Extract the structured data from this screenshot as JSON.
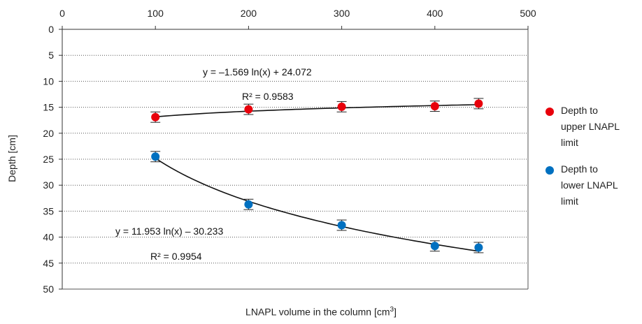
{
  "chart_data": {
    "type": "scatter",
    "xlim": [
      0,
      500
    ],
    "ylim": [
      0,
      50
    ],
    "x_ticks": [
      "0",
      "100",
      "200",
      "300",
      "400",
      "500"
    ],
    "y_ticks": [
      "0",
      "5",
      "10",
      "15",
      "20",
      "25",
      "30",
      "35",
      "40",
      "45",
      "50"
    ],
    "x_axis_position": "top",
    "y_inverted": true,
    "grid": "horizontal dotted",
    "xlabel_main": "LNAPL volume in the column [cm",
    "xlabel_sup": "3",
    "xlabel_end": "]",
    "ylabel": "Depth [cm]",
    "legend_position": "right",
    "series": [
      {
        "name": "Depth to upper LNAPL limit",
        "color": "#e8000b",
        "x": [
          100,
          200,
          300,
          400,
          447
        ],
        "y": [
          16.9,
          15.4,
          14.9,
          14.8,
          14.3
        ],
        "error": [
          1.0,
          1.0,
          1.0,
          1.0,
          1.0
        ],
        "trend": {
          "a": -1.569,
          "b": 24.072
        },
        "equation": "y = –1.569 ln(x) + 24.072",
        "r2": "R² = 0.9583"
      },
      {
        "name": "Depth to lower LNAPL limit",
        "color": "#0070c0",
        "x": [
          100,
          200,
          300,
          400,
          447
        ],
        "y": [
          24.5,
          33.7,
          37.7,
          41.7,
          42.0
        ],
        "error": [
          1.0,
          1.0,
          1.0,
          1.0,
          1.0
        ],
        "trend": {
          "a": 11.953,
          "b": -30.233
        },
        "equation": "y = 11.953 ln(x) – 30.233",
        "r2": "R² = 0.9954"
      }
    ],
    "legend_lines": [
      [
        "Depth to",
        "upper LNAPL",
        "limit"
      ],
      [
        "Depth to",
        "lower LNAPL",
        "limit"
      ]
    ]
  }
}
